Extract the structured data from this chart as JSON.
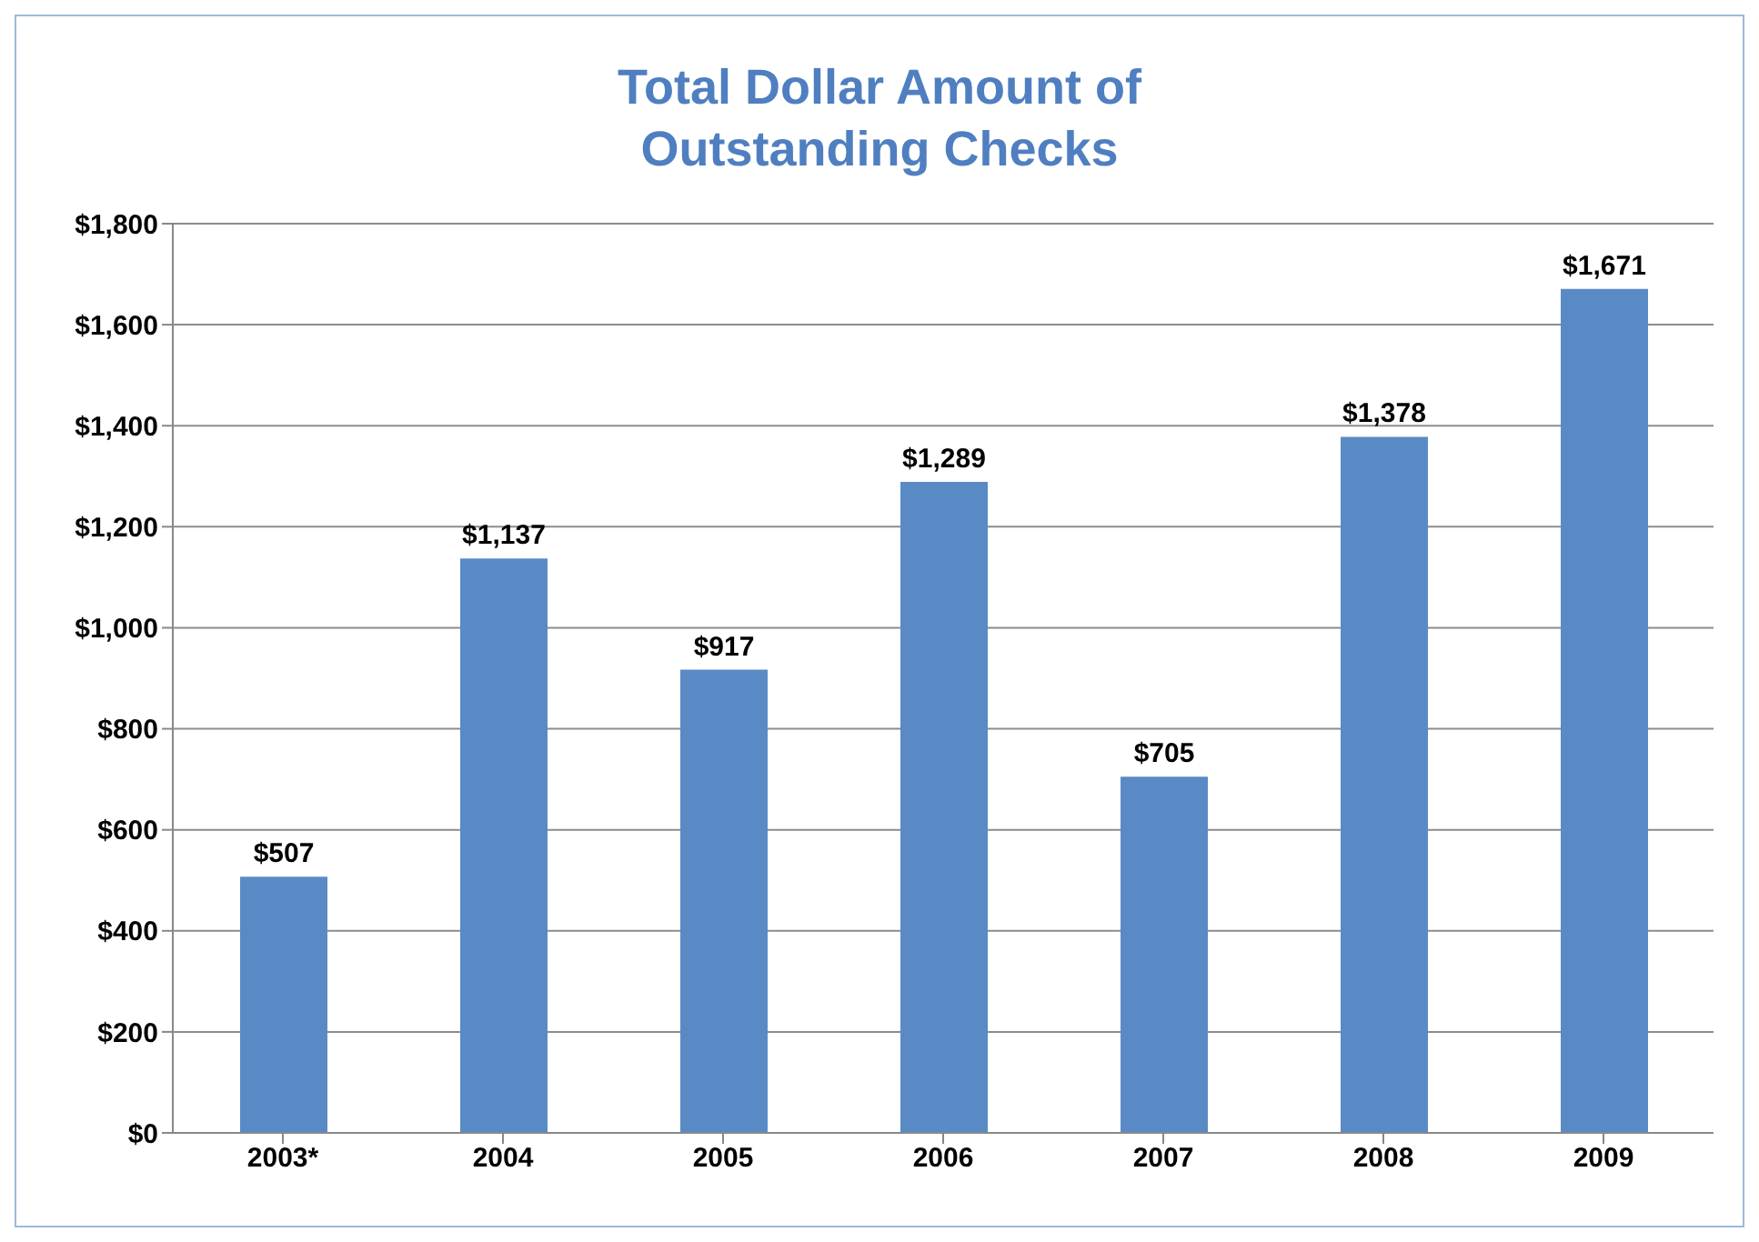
{
  "chart_data": {
    "type": "bar",
    "title": "Total Dollar Amount of Outstanding Checks",
    "categories": [
      "2003*",
      "2004",
      "2005",
      "2006",
      "2007",
      "2008",
      "2009"
    ],
    "values": [
      507,
      1137,
      917,
      1289,
      705,
      1378,
      1671
    ],
    "value_labels": [
      "$507",
      "$1,137",
      "$917",
      "$1,289",
      "$705",
      "$1,378",
      "$1,671"
    ],
    "color": "#5a8ac6",
    "ylim": [
      0,
      1800
    ],
    "yticks": [
      {
        "value": 0,
        "label": "$0"
      },
      {
        "value": 200,
        "label": "$200"
      },
      {
        "value": 400,
        "label": "$400"
      },
      {
        "value": 600,
        "label": "$600"
      },
      {
        "value": 800,
        "label": "$800"
      },
      {
        "value": 1000,
        "label": "$1,000"
      },
      {
        "value": 1200,
        "label": "$1,200"
      },
      {
        "value": 1400,
        "label": "$1,400"
      },
      {
        "value": 1600,
        "label": "$1,600"
      },
      {
        "value": 1800,
        "label": "$1,800"
      }
    ],
    "grid": "y"
  }
}
